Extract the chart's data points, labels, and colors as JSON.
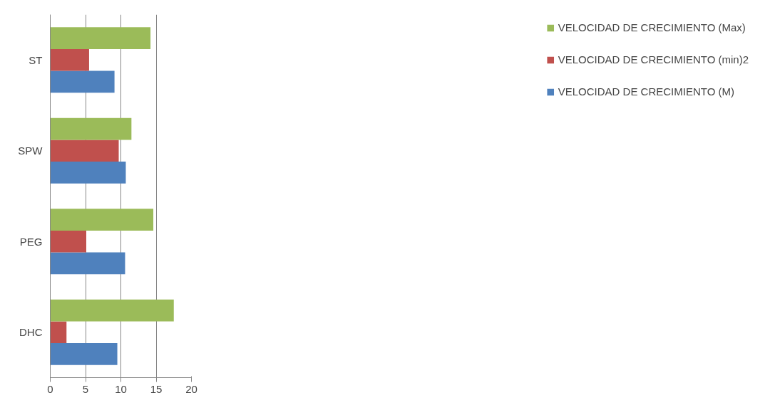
{
  "chart_data": {
    "type": "bar",
    "orientation": "horizontal",
    "categories": [
      "ST",
      "SPW",
      "PEG",
      "DHC"
    ],
    "series": [
      {
        "name": "VELOCIDAD DE CRECIMIENTO (M)",
        "color": "#4f81bd",
        "values": [
          9.1,
          10.7,
          10.6,
          9.5
        ]
      },
      {
        "name": "VELOCIDAD DE CRECIMIENTO (min)2",
        "color": "#c0504d",
        "values": [
          5.5,
          9.7,
          5.1,
          2.3
        ]
      },
      {
        "name": "VELOCIDAD DE CRECIMIENTO (Max)",
        "color": "#9bbb59",
        "values": [
          14.2,
          11.5,
          14.6,
          17.5
        ]
      }
    ],
    "xlim": [
      0,
      20
    ],
    "xticks": [
      0,
      5,
      10,
      15,
      20
    ],
    "grid": "x",
    "legend": "right"
  }
}
